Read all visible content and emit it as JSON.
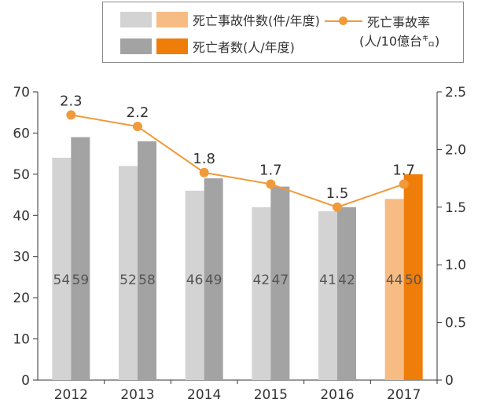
{
  "colors": {
    "accidents_past": "#d3d3d3",
    "deaths_past": "#a3a3a3",
    "accidents_latest": "#f7bc84",
    "deaths_latest": "#ef7d0a",
    "rate_line": "#f09a3a",
    "axis": "#333333",
    "text": "#333333"
  },
  "legend": {
    "accidents_label": "死亡事故件数(件/年度)",
    "deaths_label": "死亡者数(人/年度)",
    "rate_label_line1": "死亡事故率",
    "rate_label_line2": "(人/10億台㌔)"
  },
  "chart_data": {
    "type": "bar",
    "categories": [
      "2012",
      "2013",
      "2014",
      "2015",
      "2016",
      "2017"
    ],
    "series": [
      {
        "name": "死亡事故件数(件/年度)",
        "axis": "left",
        "values": [
          54,
          52,
          46,
          42,
          41,
          44
        ]
      },
      {
        "name": "死亡者数(人/年度)",
        "axis": "left",
        "values": [
          59,
          58,
          49,
          47,
          42,
          50
        ]
      },
      {
        "name": "死亡事故率",
        "type": "line",
        "axis": "right",
        "values": [
          2.3,
          2.2,
          1.8,
          1.7,
          1.5,
          1.7
        ]
      }
    ],
    "left_axis": {
      "range": [
        0,
        70
      ],
      "ticks": [
        "0",
        "10",
        "20",
        "30",
        "40",
        "50",
        "60",
        "70"
      ]
    },
    "right_axis": {
      "range": [
        0,
        2.5
      ],
      "ticks": [
        "0",
        "0.5",
        "1.0",
        "1.5",
        "2.0",
        "2.5"
      ]
    },
    "highlight_category": "2017",
    "legend_position": "top",
    "grid": false
  }
}
